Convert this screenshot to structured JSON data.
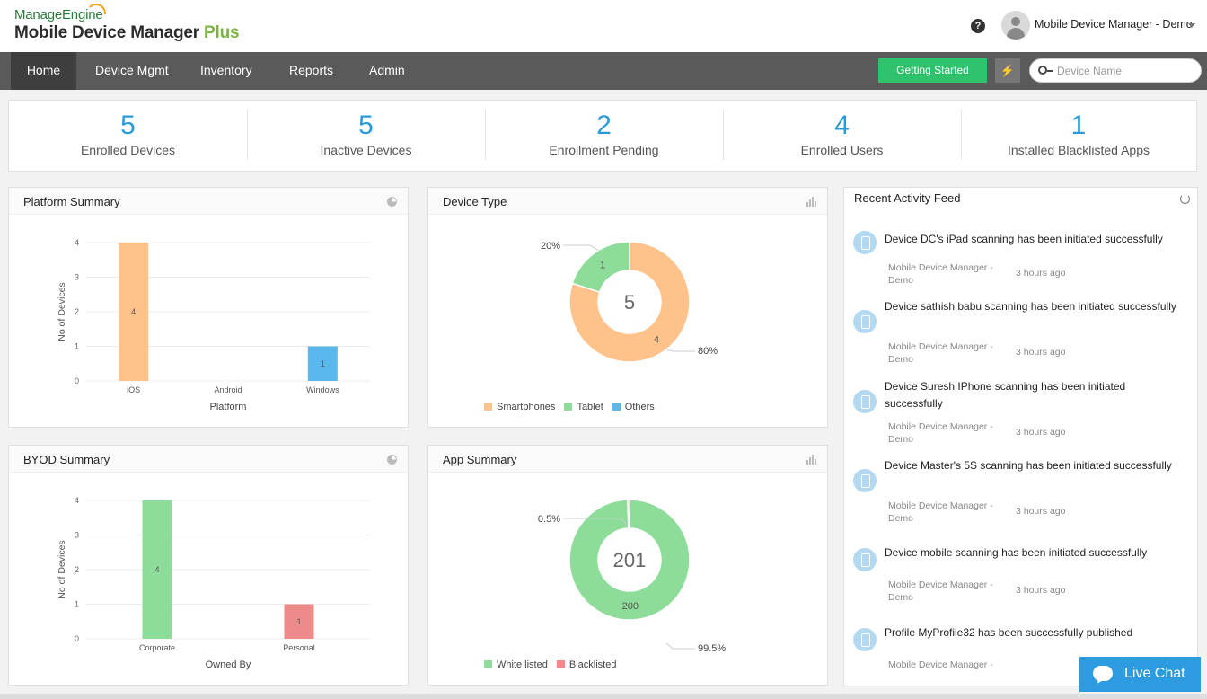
{
  "header": {
    "logo_top": "ManageEngine",
    "logo_main": "Mobile Device Manager",
    "logo_plus": "Plus",
    "help": "?",
    "user_name": "Mobile Device Manager - Demo"
  },
  "nav": {
    "items": [
      "Home",
      "Device Mgmt",
      "Inventory",
      "Reports",
      "Admin"
    ],
    "active": "Home",
    "getting_started": "Getting Started",
    "search_placeholder": "Device Name"
  },
  "stats": [
    {
      "value": "5",
      "label": "Enrolled Devices"
    },
    {
      "value": "5",
      "label": "Inactive Devices"
    },
    {
      "value": "2",
      "label": "Enrollment Pending"
    },
    {
      "value": "4",
      "label": "Enrolled Users"
    },
    {
      "value": "1",
      "label": "Installed Blacklisted Apps"
    }
  ],
  "panels": {
    "platform_title": "Platform Summary",
    "device_type_title": "Device Type",
    "byod_title": "BYOD Summary",
    "app_title": "App Summary"
  },
  "colors": {
    "orange": "#ffc28a",
    "green": "#8edc9a",
    "blue": "#5ab8ec",
    "red": "#ef8a8a",
    "accent": "#2a9bd8"
  },
  "chart_data": [
    {
      "type": "bar",
      "title": "Platform Summary",
      "categories": [
        "iOS",
        "Android",
        "Windows"
      ],
      "values": [
        4,
        0,
        1
      ],
      "data_labels": [
        "4",
        "",
        "1"
      ],
      "colors": [
        "#ffc28a",
        "#ffc28a",
        "#5ab8ec"
      ],
      "xlabel": "Platform",
      "ylabel": "No of Devices",
      "yticks": [
        "0",
        "1",
        "2",
        "3",
        "4"
      ],
      "ylim": [
        0,
        4
      ],
      "grid": true
    },
    {
      "type": "pie",
      "title": "Device Type",
      "center_label": "5",
      "slices": [
        {
          "name": "Smartphones",
          "value": 4,
          "label": "4",
          "percent": "80%",
          "color": "#ffc28a"
        },
        {
          "name": "Tablet",
          "value": 1,
          "label": "1",
          "percent": "20%",
          "color": "#8edc9a"
        },
        {
          "name": "Others",
          "value": 0,
          "label": "",
          "percent": "",
          "color": "#5ab8ec"
        }
      ],
      "legend_position": "bottom"
    },
    {
      "type": "bar",
      "title": "BYOD Summary",
      "categories": [
        "Corporate",
        "Personal"
      ],
      "values": [
        4,
        1
      ],
      "data_labels": [
        "4",
        "1"
      ],
      "colors": [
        "#8edc9a",
        "#ef8a8a"
      ],
      "xlabel": "Owned By",
      "ylabel": "No of Devices",
      "yticks": [
        "0",
        "1",
        "2",
        "3",
        "4"
      ],
      "ylim": [
        0,
        4
      ],
      "grid": true
    },
    {
      "type": "pie",
      "title": "App Summary",
      "center_label": "201",
      "slices": [
        {
          "name": "White listed",
          "value": 200,
          "label": "200",
          "percent": "99.5%",
          "color": "#8edc9a"
        },
        {
          "name": "Blacklisted",
          "value": 1,
          "label": "",
          "percent": "0.5%",
          "color": "#ef8a8a"
        }
      ],
      "legend_position": "bottom"
    }
  ],
  "feed": {
    "title": "Recent Activity Feed",
    "items": [
      {
        "text": "Device DC's iPad scanning has been initiated successfully",
        "source": "Mobile Device Manager - Demo",
        "time": "3 hours ago"
      },
      {
        "text": "Device sathish babu scanning has been initiated successfully",
        "source": "Mobile Device Manager - Demo",
        "time": "3 hours ago"
      },
      {
        "text": "Device Suresh IPhone scanning has been initiated successfully",
        "source": "Mobile Device Manager - Demo",
        "time": "3 hours ago"
      },
      {
        "text": "Device Master's 5S scanning has been initiated successfully",
        "source": "Mobile Device Manager - Demo",
        "time": "3 hours ago"
      },
      {
        "text": "Device mobile scanning has been initiated successfully",
        "source": "Mobile Device Manager - Demo",
        "time": "3 hours ago"
      },
      {
        "text": "Profile MyProfile32 has been successfully published",
        "source": "Mobile Device Manager -",
        "time": ""
      }
    ]
  },
  "chat": {
    "label": "Live Chat"
  }
}
